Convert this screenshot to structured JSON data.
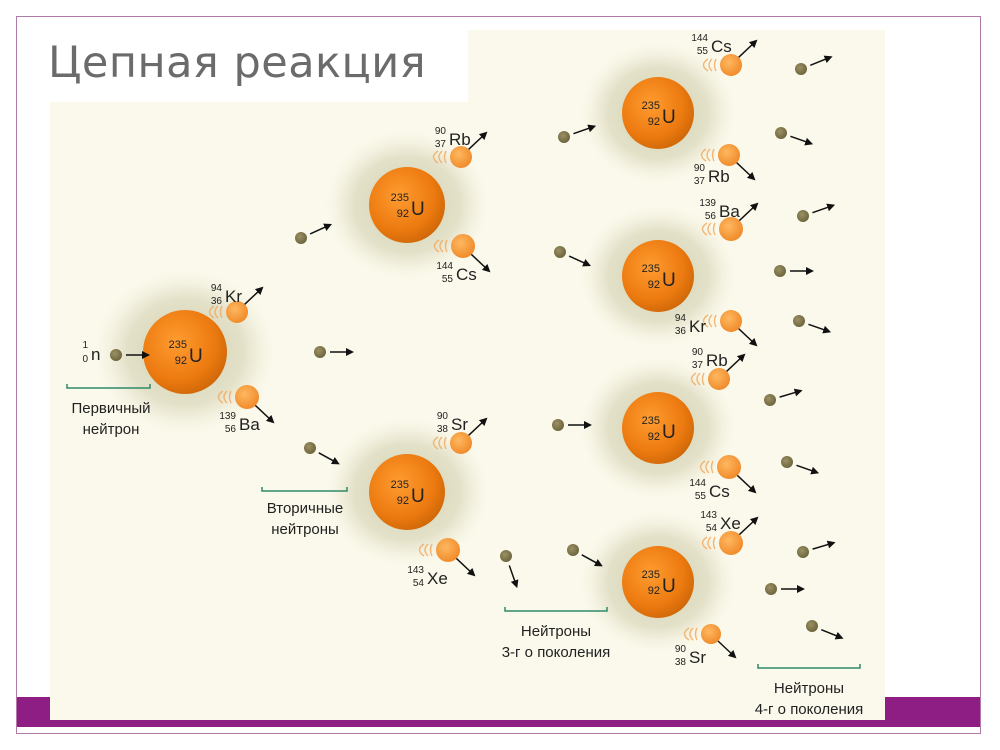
{
  "slide": {
    "title": "Цепная реакция"
  },
  "colors": {
    "accent_bar": "#8e1e83",
    "frame": "#b07aa6",
    "background": "#fbf9eb",
    "nucleus": "#ec7a10",
    "fragment": "#f49a3c",
    "neutron": "#7c7247",
    "cloud": "#c9c7a3"
  },
  "icons": [
    "uranium-nucleus-icon",
    "neutron-icon",
    "fragment-nucleus-icon",
    "arrow-icon"
  ],
  "nucleus_label": {
    "mass": "235",
    "atomic": "92",
    "symbol": "U"
  },
  "incoming_neutron": {
    "mass": "1",
    "atomic": "0",
    "symbol": "n"
  },
  "fragments": [
    {
      "mass": "94",
      "atomic": "36",
      "symbol": "Kr"
    },
    {
      "mass": "139",
      "atomic": "56",
      "symbol": "Ba"
    },
    {
      "mass": "90",
      "atomic": "37",
      "symbol": "Rb"
    },
    {
      "mass": "144",
      "atomic": "55",
      "symbol": "Cs"
    },
    {
      "mass": "90",
      "atomic": "38",
      "symbol": "Sr"
    },
    {
      "mass": "143",
      "atomic": "54",
      "symbol": "Xe"
    },
    {
      "mass": "144",
      "atomic": "55",
      "symbol": "Cs"
    },
    {
      "mass": "90",
      "atomic": "37",
      "symbol": "Rb"
    },
    {
      "mass": "139",
      "atomic": "56",
      "symbol": "Ba"
    },
    {
      "mass": "94",
      "atomic": "36",
      "symbol": "Kr"
    },
    {
      "mass": "90",
      "atomic": "37",
      "symbol": "Rb"
    },
    {
      "mass": "144",
      "atomic": "55",
      "symbol": "Cs"
    },
    {
      "mass": "143",
      "atomic": "54",
      "symbol": "Xe"
    },
    {
      "mass": "90",
      "atomic": "38",
      "symbol": "Sr"
    }
  ],
  "captions": {
    "primary": {
      "line1": "Первичный",
      "line2": "нейтрон"
    },
    "secondary": {
      "line1": "Вторичные",
      "line2": "нейтроны"
    },
    "third": {
      "line1": "Нейтроны",
      "line2": "3-г о поколения"
    },
    "fourth": {
      "line1": "Нейтроны",
      "line2": "4-г о поколения"
    }
  }
}
